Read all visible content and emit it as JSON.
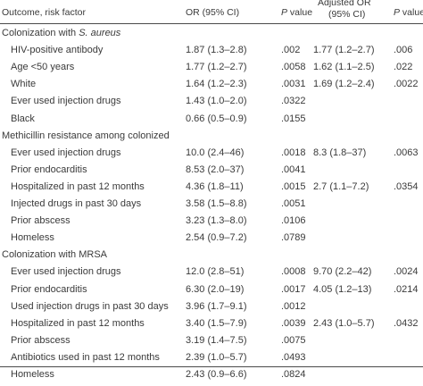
{
  "header": {
    "factor": "Outcome, risk factor",
    "or": "OR (95% CI)",
    "p_italic": "P",
    "p_rest": " value",
    "adj_or_line1": "Adjusted OR",
    "adj_or_line2": "(95% CI)",
    "adj_p_italic": "P",
    "adj_p_rest": " value"
  },
  "sections": [
    {
      "title_plain": "Colonization with ",
      "title_italic": "S. aureus",
      "rows": [
        {
          "factor": "HIV-positive antibody",
          "or": "1.87 (1.3–2.8)",
          "p": ".002",
          "aor": "1.77 (1.2–2.7)",
          "ap": ".006"
        },
        {
          "factor": "Age <50 years",
          "or": "1.77 (1.2–2.7)",
          "p": ".0058",
          "aor": "1.62 (1.1–2.5)",
          "ap": ".022"
        },
        {
          "factor": "White",
          "or": "1.64 (1.2–2.3)",
          "p": ".0031",
          "aor": "1.69 (1.2–2.4)",
          "ap": ".0022"
        },
        {
          "factor": "Ever used injection drugs",
          "or": "1.43 (1.0–2.0)",
          "p": ".0322",
          "aor": "",
          "ap": ""
        },
        {
          "factor": "Black",
          "or": "0.66 (0.5–0.9)",
          "p": ".0155",
          "aor": "",
          "ap": ""
        }
      ]
    },
    {
      "title_plain": "Methicillin resistance among colonized",
      "title_italic": "",
      "rows": [
        {
          "factor": "Ever used injection drugs",
          "or": "10.0 (2.4–46)",
          "p": ".0018",
          "aor": "8.3 (1.8–37)",
          "ap": ".0063"
        },
        {
          "factor": "Prior endocarditis",
          "or": "8.53 (2.0–37)",
          "p": ".0041",
          "aor": "",
          "ap": ""
        },
        {
          "factor": "Hospitalized in past 12 months",
          "or": "4.36 (1.8–11)",
          "p": ".0015",
          "aor": "2.7 (1.1–7.2)",
          "ap": ".0354"
        },
        {
          "factor": "Injected drugs in past 30 days",
          "or": "3.58 (1.5–8.8)",
          "p": ".0051",
          "aor": "",
          "ap": ""
        },
        {
          "factor": "Prior abscess",
          "or": "3.23 (1.3–8.0)",
          "p": ".0106",
          "aor": "",
          "ap": ""
        },
        {
          "factor": "Homeless",
          "or": "2.54 (0.9–7.2)",
          "p": ".0789",
          "aor": "",
          "ap": ""
        }
      ]
    },
    {
      "title_plain": "Colonization with MRSA",
      "title_italic": "",
      "rows": [
        {
          "factor": "Ever used injection drugs",
          "or": "12.0 (2.8–51)",
          "p": ".0008",
          "aor": "9.70 (2.2–42)",
          "ap": ".0024"
        },
        {
          "factor": "Prior endocarditis",
          "or": "6.30 (2.0–19)",
          "p": ".0017",
          "aor": "4.05 (1.2–13)",
          "ap": ".0214"
        },
        {
          "factor": "Used injection drugs in past 30 days",
          "or": "3.96 (1.7–9.1)",
          "p": ".0012",
          "aor": "",
          "ap": ""
        },
        {
          "factor": "Hospitalized in past 12 months",
          "or": "3.40 (1.5–7.9)",
          "p": ".0039",
          "aor": "2.43 (1.0–5.7)",
          "ap": ".0432"
        },
        {
          "factor": "Prior abscess",
          "or": "3.19 (1.4–7.5)",
          "p": ".0075",
          "aor": "",
          "ap": ""
        },
        {
          "factor": "Antibiotics used in past 12 months",
          "or": "2.39 (1.0–5.7)",
          "p": ".0493",
          "aor": "",
          "ap": ""
        },
        {
          "factor": "Homeless",
          "or": "2.43 (0.9–6.6)",
          "p": ".0824",
          "aor": "",
          "ap": ""
        }
      ]
    }
  ]
}
